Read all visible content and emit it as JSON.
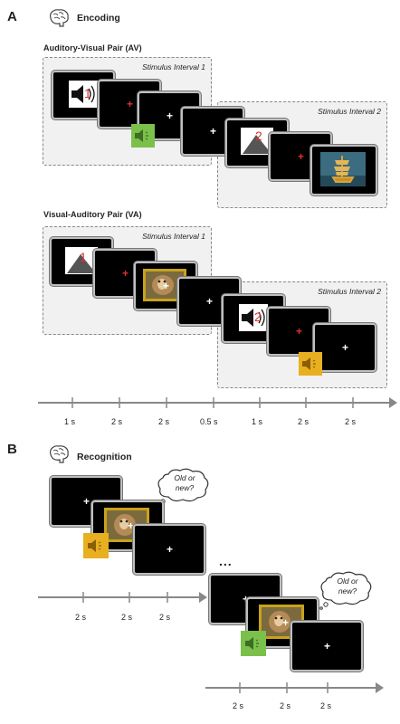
{
  "panel_a": {
    "letter": "A",
    "title": "Encoding",
    "av_label": "Auditory-Visual  Pair (AV)",
    "va_label": "Visual-Auditory  Pair (VA)",
    "stimulus_interval_1": "Stimulus Interval 1",
    "stimulus_interval_2": "Stimulus Interval 2",
    "sound_number_1": "1",
    "sound_number_2": "2",
    "timeline": [
      "1 s",
      "2 s",
      "2 s",
      "0.5 s",
      "1 s",
      "2 s",
      "2 s"
    ]
  },
  "panel_b": {
    "letter": "B",
    "title": "Recognition",
    "question_line1": "Old or",
    "question_line2": "new?",
    "ellipsis": "...",
    "timeline_1": [
      "2 s",
      "2 s",
      "2 s"
    ],
    "timeline_2": [
      "2 s",
      "2 s",
      "2 s"
    ]
  },
  "colors": {
    "fixation_red": "#e03030",
    "fixation_white": "#ffffff",
    "speaker_green": "#7ac04a",
    "speaker_yellow": "#e8b020",
    "screen_black": "#000000",
    "interval_fill": "#f1f1f1"
  },
  "icons": [
    "brain-icon",
    "speaker-icon",
    "triangle-icon",
    "ship-image",
    "dog-image"
  ]
}
